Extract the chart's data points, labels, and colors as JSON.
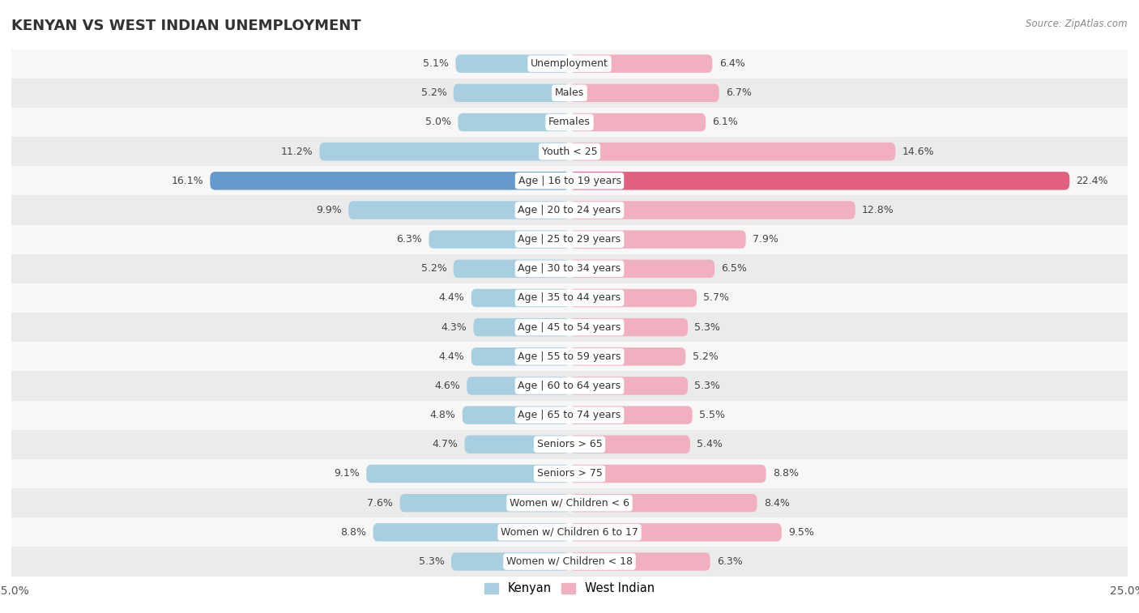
{
  "title": "KENYAN VS WEST INDIAN UNEMPLOYMENT",
  "source": "Source: ZipAtlas.com",
  "categories": [
    "Unemployment",
    "Males",
    "Females",
    "Youth < 25",
    "Age | 16 to 19 years",
    "Age | 20 to 24 years",
    "Age | 25 to 29 years",
    "Age | 30 to 34 years",
    "Age | 35 to 44 years",
    "Age | 45 to 54 years",
    "Age | 55 to 59 years",
    "Age | 60 to 64 years",
    "Age | 65 to 74 years",
    "Seniors > 65",
    "Seniors > 75",
    "Women w/ Children < 6",
    "Women w/ Children 6 to 17",
    "Women w/ Children < 18"
  ],
  "kenyan": [
    5.1,
    5.2,
    5.0,
    11.2,
    16.1,
    9.9,
    6.3,
    5.2,
    4.4,
    4.3,
    4.4,
    4.6,
    4.8,
    4.7,
    9.1,
    7.6,
    8.8,
    5.3
  ],
  "west_indian": [
    6.4,
    6.7,
    6.1,
    14.6,
    22.4,
    12.8,
    7.9,
    6.5,
    5.7,
    5.3,
    5.2,
    5.3,
    5.5,
    5.4,
    8.8,
    8.4,
    9.5,
    6.3
  ],
  "kenyan_color": "#a8cfe0",
  "west_indian_color": "#f0b0c0",
  "highlight_kenyan_color": "#6699cc",
  "highlight_west_indian_color": "#e06080",
  "row_color_light": "#f7f7f7",
  "row_color_dark": "#ebebeb",
  "xlim": 25.0,
  "bar_height": 0.62,
  "legend_kenyan": "Kenyan",
  "legend_west_indian": "West Indian",
  "label_fontsize": 9,
  "cat_fontsize": 9
}
